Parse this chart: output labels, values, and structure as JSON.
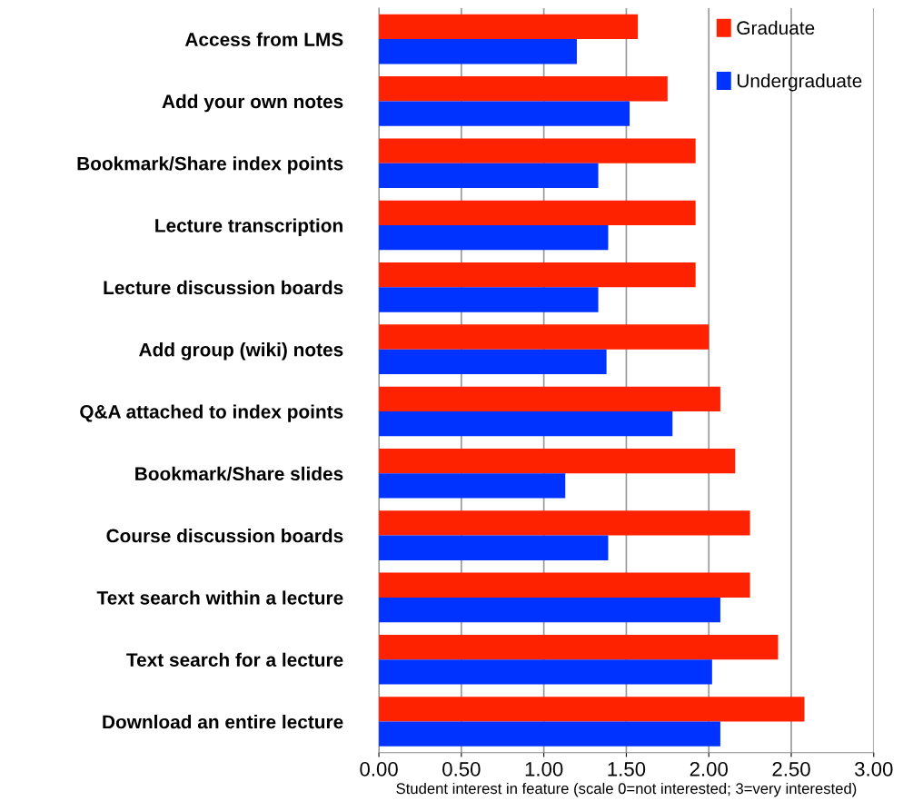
{
  "chart_data": {
    "type": "bar",
    "orientation": "horizontal",
    "categories": [
      "Access from LMS",
      "Add your own notes",
      "Bookmark/Share index points",
      "Lecture transcription",
      "Lecture discussion boards",
      "Add group (wiki) notes",
      "Q&A attached to index points",
      "Bookmark/Share slides",
      "Course discussion boards",
      "Text search within a lecture",
      "Text search for a lecture",
      "Download an entire lecture"
    ],
    "series": [
      {
        "name": "Graduate",
        "color": "#ff2200",
        "values": [
          1.57,
          1.75,
          1.92,
          1.92,
          1.92,
          2.0,
          2.07,
          2.16,
          2.25,
          2.25,
          2.42,
          2.58
        ]
      },
      {
        "name": "Undergraduate",
        "color": "#0033ff",
        "values": [
          1.2,
          1.52,
          1.33,
          1.39,
          1.33,
          1.38,
          1.78,
          1.13,
          1.39,
          2.07,
          2.02,
          2.07
        ]
      }
    ],
    "xlim": [
      0,
      3
    ],
    "xticks": [
      {
        "value": 0,
        "label": "0.00"
      },
      {
        "value": 0.5,
        "label": "0.50"
      },
      {
        "value": 1,
        "label": "1.00"
      },
      {
        "value": 1.5,
        "label": "1.50"
      },
      {
        "value": 2,
        "label": "2.00"
      },
      {
        "value": 2.5,
        "label": "2.50"
      },
      {
        "value": 3,
        "label": "3.00"
      }
    ],
    "xlabel": "Student interest in feature (scale 0=not interested; 3=very interested)",
    "grid": "x",
    "legend": "top right"
  }
}
